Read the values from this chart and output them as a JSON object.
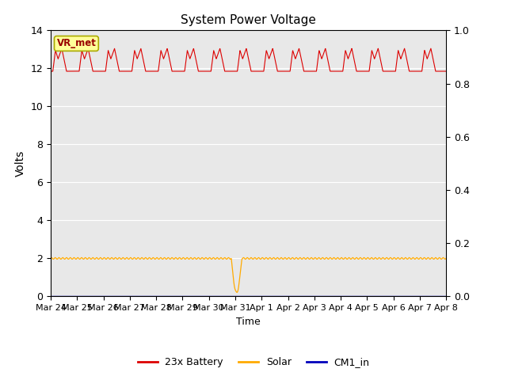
{
  "title": "System Power Voltage",
  "xlabel": "Time",
  "ylabel": "Volts",
  "ylim_left": [
    0,
    14
  ],
  "ylim_right": [
    0.0,
    1.0
  ],
  "yticks_left": [
    0,
    2,
    4,
    6,
    8,
    10,
    12,
    14
  ],
  "yticks_right": [
    0.0,
    0.2,
    0.4,
    0.6,
    0.8,
    1.0
  ],
  "xtick_labels": [
    "Mar 24",
    "Mar 25",
    "Mar 26",
    "Mar 27",
    "Mar 28",
    "Mar 29",
    "Mar 30",
    "Mar 31",
    "Apr 1",
    "Apr 2",
    "Apr 3",
    "Apr 4",
    "Apr 5",
    "Apr 6",
    "Apr 7",
    "Apr 8"
  ],
  "bg_color": "#e8e8e8",
  "grid_color": "white",
  "battery_color": "#dd0000",
  "solar_color": "#ffaa00",
  "cm1_color": "#0000bb",
  "vr_met_bg": "#ffff99",
  "vr_met_border": "#aaaa00",
  "vr_met_text_color": "#990000",
  "legend_labels": [
    "23x Battery",
    "Solar",
    "CM1_in"
  ],
  "annotation_text": "VR_met",
  "figsize": [
    6.4,
    4.8
  ],
  "dpi": 100
}
